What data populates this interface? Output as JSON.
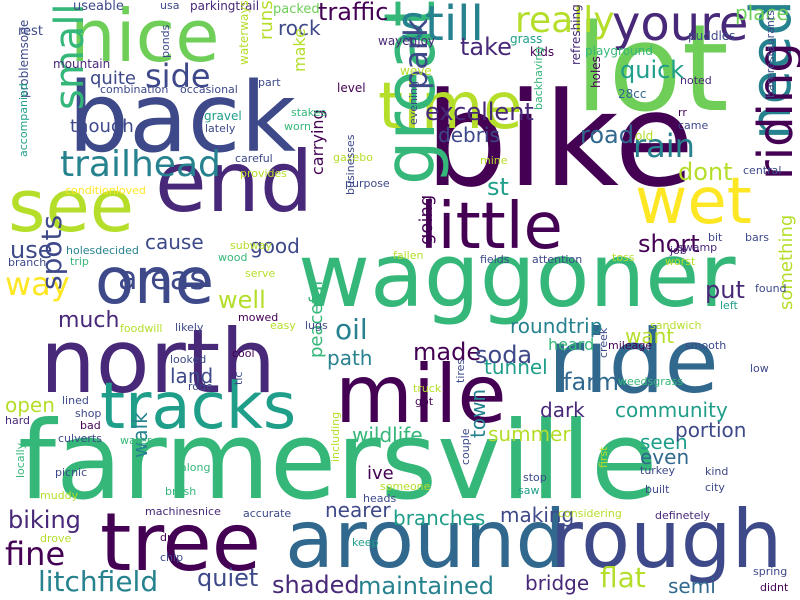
{
  "palette": {
    "dark_purple": "#440154",
    "purple": "#482878",
    "indigo": "#3e4989",
    "blue": "#31688e",
    "teal": "#26828e",
    "green_teal": "#1f9e89",
    "green": "#35b779",
    "light_green": "#6ece58",
    "lime": "#b5de2b",
    "yellow": "#fde725"
  },
  "words": [
    {
      "text": "farmersville",
      "c": "#35b779"
    },
    {
      "text": "bike",
      "c": "#440154"
    },
    {
      "text": "waggoner",
      "c": "#35b779"
    },
    {
      "text": "lot",
      "c": "#6ece58"
    },
    {
      "text": "back",
      "c": "#3e4989"
    },
    {
      "text": "around",
      "c": "#31688e"
    },
    {
      "text": "north",
      "c": "#482878"
    },
    {
      "text": "ride",
      "c": "#31688e"
    },
    {
      "text": "end",
      "c": "#482878"
    },
    {
      "text": "tree",
      "c": "#440154"
    },
    {
      "text": "rough",
      "c": "#3e4989"
    },
    {
      "text": "mile",
      "c": "#440154"
    },
    {
      "text": "time",
      "c": "#b5de2b"
    },
    {
      "text": "nice",
      "c": "#6ece58"
    },
    {
      "text": "see",
      "c": "#b5de2b"
    },
    {
      "text": "great",
      "c": "#35b779"
    },
    {
      "text": "one",
      "c": "#3e4989"
    },
    {
      "text": "wet",
      "c": "#fde725"
    },
    {
      "text": "tracks",
      "c": "#1f9e89"
    },
    {
      "text": "little",
      "c": "#440154"
    },
    {
      "text": "need",
      "c": "#26828e"
    },
    {
      "text": "riding",
      "c": "#440154"
    },
    {
      "text": "still",
      "c": "#26828e"
    },
    {
      "text": "youre",
      "c": "#482878"
    },
    {
      "text": "small",
      "c": "#35b779"
    },
    {
      "text": "trailhead",
      "c": "#26828e"
    },
    {
      "text": "really",
      "c": "#b5de2b"
    },
    {
      "text": "side",
      "c": "#3e4989"
    },
    {
      "text": "rain",
      "c": "#26828e"
    },
    {
      "text": "way",
      "c": "#fde725"
    },
    {
      "text": "areas",
      "c": "#3e4989"
    },
    {
      "text": "spots",
      "c": "#3e4989"
    },
    {
      "text": "oil",
      "c": "#26828e"
    },
    {
      "text": "park",
      "c": "#3e4989"
    },
    {
      "text": "fine",
      "c": "#440154"
    },
    {
      "text": "litchfield",
      "c": "#26828e"
    },
    {
      "text": "shaded",
      "c": "#482878"
    },
    {
      "text": "quiet",
      "c": "#3e4989"
    },
    {
      "text": "maintained",
      "c": "#26828e"
    },
    {
      "text": "flat",
      "c": "#b5de2b"
    },
    {
      "text": "biking",
      "c": "#482878"
    },
    {
      "text": "roundtrip",
      "c": "#26828e"
    },
    {
      "text": "excellent",
      "c": "#482878"
    },
    {
      "text": "quick",
      "c": "#1f9e89"
    },
    {
      "text": "place",
      "c": "#6ece58"
    },
    {
      "text": "road",
      "c": "#31688e"
    },
    {
      "text": "take",
      "c": "#482878"
    },
    {
      "text": "traffic",
      "c": "#440154"
    },
    {
      "text": "rock",
      "c": "#3e4989"
    },
    {
      "text": "debris",
      "c": "#3e4989"
    },
    {
      "text": "dont",
      "c": "#b5de2b"
    },
    {
      "text": "st",
      "c": "#1f9e89"
    },
    {
      "text": "short",
      "c": "#440154"
    },
    {
      "text": "good",
      "c": "#3e4989"
    },
    {
      "text": "use",
      "c": "#3e4989"
    },
    {
      "text": "cause",
      "c": "#3e4989"
    },
    {
      "text": "well",
      "c": "#b5de2b"
    },
    {
      "text": "much",
      "c": "#482878"
    },
    {
      "text": "put",
      "c": "#482878"
    },
    {
      "text": "want",
      "c": "#b5de2b"
    },
    {
      "text": "made",
      "c": "#440154"
    },
    {
      "text": "soda",
      "c": "#3e4989"
    },
    {
      "text": "path",
      "c": "#26828e"
    },
    {
      "text": "land",
      "c": "#3e4989"
    },
    {
      "text": "tunnel",
      "c": "#1f9e89"
    },
    {
      "text": "farm",
      "c": "#31688e"
    },
    {
      "text": "dark",
      "c": "#482878"
    },
    {
      "text": "wildlife",
      "c": "#35b779"
    },
    {
      "text": "summer",
      "c": "#b5de2b"
    },
    {
      "text": "town",
      "c": "#26828e"
    },
    {
      "text": "seen",
      "c": "#1f9e89"
    },
    {
      "text": "even",
      "c": "#31688e"
    },
    {
      "text": "portion",
      "c": "#3e4989"
    },
    {
      "text": "community",
      "c": "#1f9e89"
    },
    {
      "text": "walk",
      "c": "#26828e"
    },
    {
      "text": "open",
      "c": "#b5de2b"
    },
    {
      "text": "peaceful",
      "c": "#35b779"
    },
    {
      "text": "nearer",
      "c": "#3e4989"
    },
    {
      "text": "branches",
      "c": "#1f9e89"
    },
    {
      "text": "making",
      "c": "#3e4989"
    },
    {
      "text": "bridge",
      "c": "#482878"
    },
    {
      "text": "semi",
      "c": "#31688e"
    },
    {
      "text": "ive",
      "c": "#440154"
    },
    {
      "text": "runs",
      "c": "#b5de2b"
    },
    {
      "text": "going",
      "c": "#440154"
    },
    {
      "text": "carrying",
      "c": "#440154"
    },
    {
      "text": "make",
      "c": "#b5de2b"
    },
    {
      "text": "quite",
      "c": "#3e4989"
    },
    {
      "text": "though",
      "c": "#3e4989"
    },
    {
      "text": "something",
      "c": "#b5de2b"
    },
    {
      "text": "heard",
      "c": "#35b779"
    },
    {
      "text": "useable",
      "c": "#3e4989"
    },
    {
      "text": "usa",
      "c": "#3e4989"
    },
    {
      "text": "parkingtrail",
      "c": "#482878"
    },
    {
      "text": "packed",
      "c": "#6ece58"
    },
    {
      "text": "rest",
      "c": "#3e4989"
    },
    {
      "text": "wayenjoy",
      "c": "#482878"
    },
    {
      "text": "grass",
      "c": "#1f9e89"
    },
    {
      "text": "kids",
      "c": "#440154"
    },
    {
      "text": "playground",
      "c": "#35b779"
    },
    {
      "text": "puddles",
      "c": "#3e4989"
    },
    {
      "text": "mountain",
      "c": "#482878"
    },
    {
      "text": "ponds",
      "c": "#3e4989"
    },
    {
      "text": "waterways",
      "c": "#b5de2b"
    },
    {
      "text": "level",
      "c": "#440154"
    },
    {
      "text": "weve",
      "c": "#b5de2b"
    },
    {
      "text": "combination",
      "c": "#3e4989"
    },
    {
      "text": "occasional",
      "c": "#3e4989"
    },
    {
      "text": "part",
      "c": "#3e4989"
    },
    {
      "text": "refreshing",
      "c": "#482878"
    },
    {
      "text": "holes",
      "c": "#440154"
    },
    {
      "text": "28cc",
      "c": "#31688e"
    },
    {
      "text": "noted",
      "c": "#482878"
    },
    {
      "text": "problemsone",
      "c": "#3e4989"
    },
    {
      "text": "stakes",
      "c": "#35b779"
    },
    {
      "text": "worn",
      "c": "#35b779"
    },
    {
      "text": "rr",
      "c": "#440154"
    },
    {
      "text": "came",
      "c": "#3e4989"
    },
    {
      "text": "barerestaurants",
      "c": "#3e4989"
    },
    {
      "text": "gravel",
      "c": "#1f9e89"
    },
    {
      "text": "lately",
      "c": "#3e4989"
    },
    {
      "text": "backhaving",
      "c": "#35b779"
    },
    {
      "text": "old",
      "c": "#b5de2b"
    },
    {
      "text": "accompanied",
      "c": "#1f9e89"
    },
    {
      "text": "careful",
      "c": "#3e4989"
    },
    {
      "text": "provides",
      "c": "#b5de2b"
    },
    {
      "text": "gazebo",
      "c": "#b5de2b"
    },
    {
      "text": "evening",
      "c": "#3e4989"
    },
    {
      "text": "mine",
      "c": "#b5de2b"
    },
    {
      "text": "central",
      "c": "#3e4989"
    },
    {
      "text": "conditionloved",
      "c": "#fde725"
    },
    {
      "text": "purpose",
      "c": "#3e4989"
    },
    {
      "text": "businesses",
      "c": "#3e4989"
    },
    {
      "text": "holesdecided",
      "c": "#26828e"
    },
    {
      "text": "subway",
      "c": "#b5de2b"
    },
    {
      "text": "job",
      "c": "#482878"
    },
    {
      "text": "bit",
      "c": "#3e4989"
    },
    {
      "text": "bars",
      "c": "#3e4989"
    },
    {
      "text": "swamp",
      "c": "#482878"
    },
    {
      "text": "branch",
      "c": "#3e4989"
    },
    {
      "text": "trip",
      "c": "#35b779"
    },
    {
      "text": "wood",
      "c": "#35b779"
    },
    {
      "text": "fallen",
      "c": "#b5de2b"
    },
    {
      "text": "fields",
      "c": "#3e4989"
    },
    {
      "text": "attention",
      "c": "#3e4989"
    },
    {
      "text": "toss",
      "c": "#b5de2b"
    },
    {
      "text": "worst",
      "c": "#b5de2b"
    },
    {
      "text": "serve",
      "c": "#b5de2b"
    },
    {
      "text": "left",
      "c": "#1f9e89"
    },
    {
      "text": "found",
      "c": "#3e4989"
    },
    {
      "text": "foodwill",
      "c": "#b5de2b"
    },
    {
      "text": "likely",
      "c": "#3e4989"
    },
    {
      "text": "mowed",
      "c": "#440154"
    },
    {
      "text": "easy",
      "c": "#b5de2b"
    },
    {
      "text": "lugs",
      "c": "#3e4989"
    },
    {
      "text": "sandwich",
      "c": "#b5de2b"
    },
    {
      "text": "mileage",
      "c": "#440154"
    },
    {
      "text": "smooth",
      "c": "#3e4989"
    },
    {
      "text": "looked",
      "c": "#3e4989"
    },
    {
      "text": "cool",
      "c": "#440154"
    },
    {
      "text": "rode",
      "c": "#3e4989"
    },
    {
      "text": "truck",
      "c": "#b5de2b"
    },
    {
      "text": "creek",
      "c": "#3e4989"
    },
    {
      "text": "weedsgrass",
      "c": "#35b779"
    },
    {
      "text": "low",
      "c": "#3e4989"
    },
    {
      "text": "lined",
      "c": "#3e4989"
    },
    {
      "text": "got",
      "c": "#440154"
    },
    {
      "text": "tires",
      "c": "#3e4989"
    },
    {
      "text": "shop",
      "c": "#3e4989"
    },
    {
      "text": "tlc",
      "c": "#3e4989"
    },
    {
      "text": "hard",
      "c": "#482878"
    },
    {
      "text": "bad",
      "c": "#440154"
    },
    {
      "text": "culverts",
      "c": "#3e4989"
    },
    {
      "text": "water",
      "c": "#35b779"
    },
    {
      "text": "picnic",
      "c": "#3e4989"
    },
    {
      "text": "along",
      "c": "#35b779"
    },
    {
      "text": "including",
      "c": "#b5de2b"
    },
    {
      "text": "stop",
      "c": "#3e4989"
    },
    {
      "text": "kind",
      "c": "#3e4989"
    },
    {
      "text": "first",
      "c": "#b5de2b"
    },
    {
      "text": "turkey",
      "c": "#3e4989"
    },
    {
      "text": "locally",
      "c": "#35b779"
    },
    {
      "text": "couple",
      "c": "#3e4989"
    },
    {
      "text": "someone",
      "c": "#b5de2b"
    },
    {
      "text": "saw",
      "c": "#1f9e89"
    },
    {
      "text": "built",
      "c": "#3e4989"
    },
    {
      "text": "city",
      "c": "#3e4989"
    },
    {
      "text": "muddy",
      "c": "#b5de2b"
    },
    {
      "text": "brush",
      "c": "#35b779"
    },
    {
      "text": "heads",
      "c": "#3e4989"
    },
    {
      "text": "machinesnice",
      "c": "#482878"
    },
    {
      "text": "accurate",
      "c": "#3e4989"
    },
    {
      "text": "considering",
      "c": "#b5de2b"
    },
    {
      "text": "definetely",
      "c": "#482878"
    },
    {
      "text": "drove",
      "c": "#b5de2b"
    },
    {
      "text": "dry",
      "c": "#440154"
    },
    {
      "text": "keep",
      "c": "#1f9e89"
    },
    {
      "text": "chip",
      "c": "#3e4989"
    },
    {
      "text": "spring",
      "c": "#3e4989"
    },
    {
      "text": "didnt",
      "c": "#440154"
    }
  ]
}
